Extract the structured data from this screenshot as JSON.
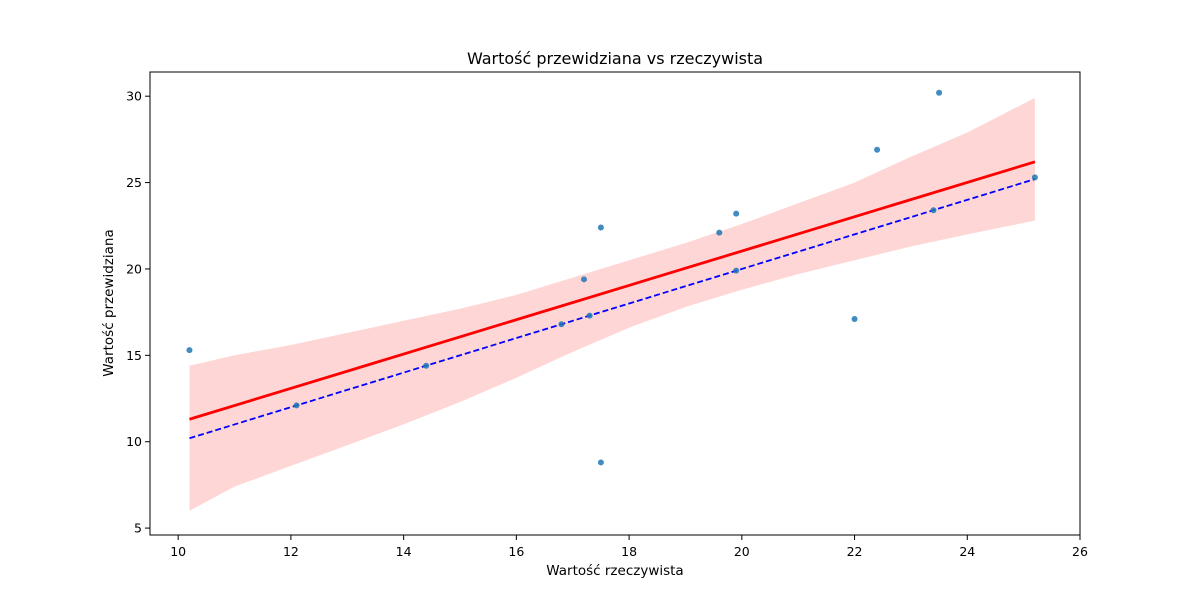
{
  "chart_data": {
    "type": "scatter",
    "title": "Wartość przewidziana vs rzeczywista",
    "xlabel": "Wartość rzeczywista",
    "ylabel": "Wartość przewidziana",
    "xlim": [
      9.5,
      26
    ],
    "ylim": [
      4.6,
      31.4
    ],
    "xticks": [
      10,
      12,
      14,
      16,
      18,
      20,
      22,
      24,
      26
    ],
    "yticks": [
      5,
      10,
      15,
      20,
      25,
      30
    ],
    "grid": false,
    "colors": {
      "points": "#1f77b4",
      "regression": "#ff0000",
      "band": "#ffd6d6",
      "ideal": "#0000ff"
    },
    "points": [
      {
        "x": 10.2,
        "y": 15.3
      },
      {
        "x": 12.1,
        "y": 12.1
      },
      {
        "x": 14.4,
        "y": 14.4
      },
      {
        "x": 16.8,
        "y": 16.8
      },
      {
        "x": 17.2,
        "y": 19.4
      },
      {
        "x": 17.3,
        "y": 17.3
      },
      {
        "x": 17.5,
        "y": 22.4
      },
      {
        "x": 17.5,
        "y": 8.8
      },
      {
        "x": 19.6,
        "y": 22.1
      },
      {
        "x": 19.9,
        "y": 23.2
      },
      {
        "x": 19.9,
        "y": 19.9
      },
      {
        "x": 22.0,
        "y": 17.1
      },
      {
        "x": 22.4,
        "y": 26.9
      },
      {
        "x": 23.4,
        "y": 23.4
      },
      {
        "x": 23.5,
        "y": 30.2
      },
      {
        "x": 25.2,
        "y": 25.3
      }
    ],
    "regression_line": {
      "x": [
        10.2,
        25.2
      ],
      "y": [
        11.3,
        26.2
      ]
    },
    "confidence_band": {
      "x": [
        10.2,
        11,
        12,
        13,
        14,
        15,
        16,
        17,
        18,
        19,
        20,
        21,
        22,
        23,
        24,
        25.2
      ],
      "upper": [
        14.4,
        15.0,
        15.6,
        16.3,
        17.0,
        17.7,
        18.5,
        19.5,
        20.5,
        21.5,
        22.6,
        23.8,
        25.0,
        26.5,
        27.9,
        29.9
      ],
      "lower": [
        6.0,
        7.4,
        8.6,
        9.8,
        11.0,
        12.3,
        13.7,
        15.2,
        16.6,
        17.8,
        18.8,
        19.7,
        20.5,
        21.3,
        22.0,
        22.8
      ]
    },
    "ideal_line": {
      "x": [
        10.2,
        25.2
      ],
      "y": [
        10.2,
        25.2
      ]
    }
  }
}
